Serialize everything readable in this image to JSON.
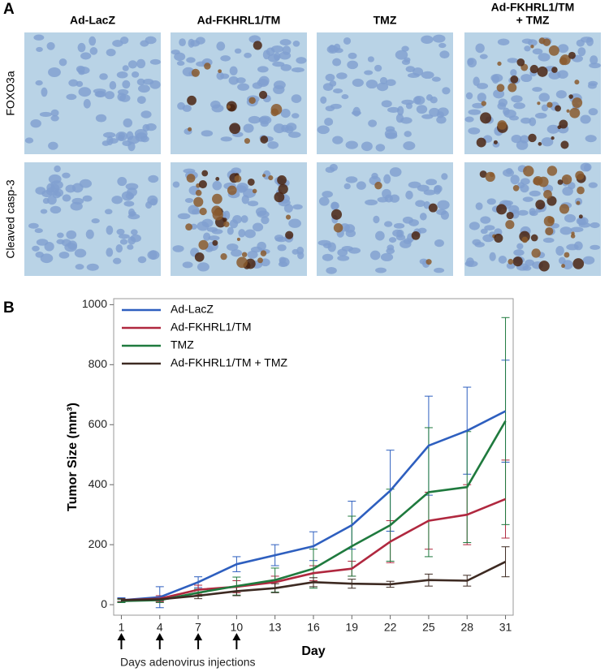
{
  "panel_a": {
    "label": "A",
    "column_headers": [
      [
        "Ad-LacZ"
      ],
      [
        "Ad-FKHRL1/TM"
      ],
      [
        "TMZ"
      ],
      [
        "Ad-FKHRL1/TM",
        "+ TMZ"
      ]
    ],
    "row_labels": [
      "FOXO3a",
      "Cleaved casp-3"
    ]
  },
  "chart_data": {
    "type": "line",
    "panel_label": "B",
    "x": [
      1,
      4,
      7,
      10,
      13,
      16,
      19,
      22,
      25,
      28,
      31
    ],
    "xlim": [
      0.4,
      31.6
    ],
    "xticks": [
      1,
      4,
      7,
      10,
      13,
      16,
      19,
      22,
      25,
      28,
      31
    ],
    "ylim": [
      -35,
      1020
    ],
    "yticks": [
      0,
      200,
      400,
      600,
      800,
      1000
    ],
    "x_label": "Day",
    "y_label": "Tumor Size (mm³)",
    "annotation": "Days adenovirus injections",
    "injection_days": [
      1,
      4,
      7,
      10
    ],
    "legend": "upper left",
    "series": [
      {
        "name": "Ad-LacZ",
        "color": "#2e5fbf",
        "values": [
          15,
          25,
          75,
          135,
          165,
          195,
          265,
          380,
          530,
          580,
          645
        ],
        "errors": [
          8,
          35,
          18,
          25,
          35,
          48,
          80,
          135,
          165,
          145,
          170
        ]
      },
      {
        "name": "Ad-FKHRL1/TM",
        "color": "#b0283f",
        "values": [
          15,
          20,
          50,
          60,
          75,
          105,
          120,
          210,
          280,
          300,
          352
        ],
        "errors": [
          5,
          10,
          15,
          20,
          20,
          25,
          25,
          70,
          95,
          100,
          130
        ]
      },
      {
        "name": "TMZ",
        "color": "#1f7a3e",
        "values": [
          12,
          15,
          40,
          62,
          82,
          120,
          195,
          265,
          375,
          392,
          612
        ],
        "errors": [
          5,
          8,
          12,
          30,
          40,
          65,
          100,
          120,
          215,
          185,
          345
        ]
      },
      {
        "name": "Ad-FKHRL1/TM + TMZ",
        "color": "#3d2a22",
        "values": [
          15,
          18,
          30,
          45,
          55,
          75,
          70,
          68,
          82,
          80,
          143
        ],
        "errors": [
          5,
          5,
          10,
          15,
          15,
          15,
          15,
          10,
          20,
          18,
          50
        ]
      }
    ]
  }
}
